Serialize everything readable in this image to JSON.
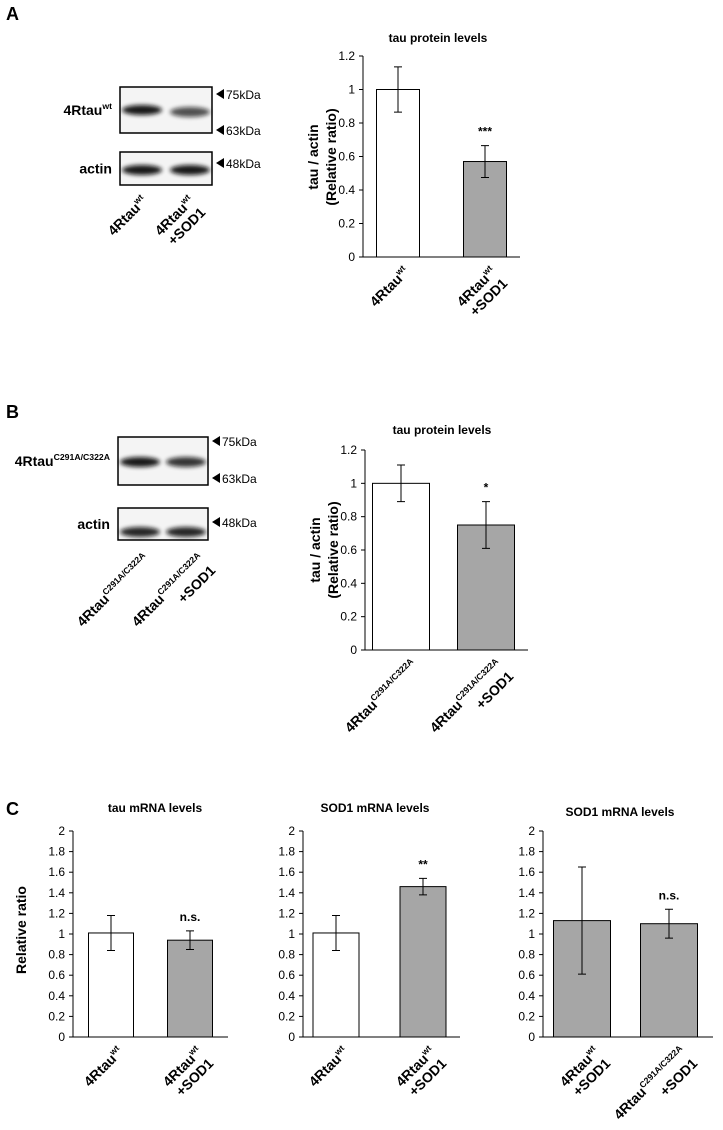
{
  "panels": [
    "A",
    "B",
    "C"
  ],
  "blots": [
    {
      "rows": [
        {
          "label": {
            "text": "4Rtau",
            "sup": "wt"
          },
          "markers": [
            "75kDa",
            "63kDa"
          ]
        },
        {
          "label": {
            "text": "actin"
          },
          "markers": [
            "48kDa"
          ]
        }
      ],
      "lanes": [
        {
          "text": "4Rtau",
          "sup": "wt"
        },
        {
          "text": "4Rtau",
          "sup": "wt",
          "line2": "+SOD1"
        }
      ]
    },
    {
      "rows": [
        {
          "label": {
            "text": "4Rtau",
            "sup": "C291A/C322A"
          },
          "markers": [
            "75kDa",
            "63kDa"
          ]
        },
        {
          "label": {
            "text": "actin"
          },
          "markers": [
            "48kDa"
          ]
        }
      ],
      "lanes": [
        {
          "text": "4Rtau",
          "sup": "C291A/C322A"
        },
        {
          "text": "4Rtau",
          "sup": "C291A/C322A",
          "line2": "+SOD1"
        }
      ]
    }
  ],
  "chart_data": [
    {
      "type": "bar",
      "title": "tau protein levels",
      "ylabel": [
        "tau / actin",
        "(Relative ratio)"
      ],
      "categories": [
        {
          "text": "4Rtau",
          "sup": "wt"
        },
        {
          "text": "4Rtau",
          "sup": "wt",
          "line2": "+SOD1"
        }
      ],
      "values": [
        1.0,
        0.57
      ],
      "errors": [
        0.135,
        0.095
      ],
      "annotations": [
        null,
        "***"
      ],
      "colors": [
        "#ffffff",
        "#a6a6a6"
      ],
      "ylim": [
        0,
        1.2
      ],
      "yticks": [
        0,
        0.2,
        0.4,
        0.6,
        0.8,
        1,
        1.2
      ]
    },
    {
      "type": "bar",
      "title": "tau protein levels",
      "ylabel": [
        "tau / actin",
        "(Relative ratio)"
      ],
      "categories": [
        {
          "text": "4Rtau",
          "sup": "C291A/C322A"
        },
        {
          "text": "4Rtau",
          "sup": "C291A/C322A",
          "line2": "+SOD1"
        }
      ],
      "values": [
        1.0,
        0.75
      ],
      "errors": [
        0.11,
        0.14
      ],
      "annotations": [
        null,
        "*"
      ],
      "colors": [
        "#ffffff",
        "#a6a6a6"
      ],
      "ylim": [
        0,
        1.2
      ],
      "yticks": [
        0,
        0.2,
        0.4,
        0.6,
        0.8,
        1,
        1.2
      ]
    },
    {
      "type": "bar",
      "title": "tau mRNA levels",
      "ylabel": "Relative ratio",
      "categories": [
        {
          "text": "4Rtau",
          "sup": "wt"
        },
        {
          "text": "4Rtau",
          "sup": "wt",
          "line2": "+SOD1"
        }
      ],
      "values": [
        1.01,
        0.94
      ],
      "errors": [
        0.17,
        0.09
      ],
      "annotations": [
        null,
        "n.s."
      ],
      "colors": [
        "#ffffff",
        "#a6a6a6"
      ],
      "ylim": [
        0,
        2
      ],
      "yticks": [
        0,
        0.2,
        0.4,
        0.6,
        0.8,
        1,
        1.2,
        1.4,
        1.6,
        1.8,
        2
      ]
    },
    {
      "type": "bar",
      "title": "SOD1 mRNA levels",
      "categories": [
        {
          "text": "4Rtau",
          "sup": "wt"
        },
        {
          "text": "4Rtau",
          "sup": "wt",
          "line2": "+SOD1"
        }
      ],
      "values": [
        1.01,
        1.46
      ],
      "errors": [
        0.17,
        0.08
      ],
      "annotations": [
        null,
        "**"
      ],
      "colors": [
        "#ffffff",
        "#a6a6a6"
      ],
      "ylim": [
        0,
        2
      ],
      "yticks": [
        0,
        0.2,
        0.4,
        0.6,
        0.8,
        1,
        1.2,
        1.4,
        1.6,
        1.8,
        2
      ]
    },
    {
      "type": "bar",
      "title": "SOD1 mRNA levels",
      "categories": [
        {
          "text": "4Rtau",
          "sup": "wt",
          "line2": "+SOD1"
        },
        {
          "text": "4Rtau",
          "sup": "C291A/C322A",
          "line2": "+SOD1"
        }
      ],
      "values": [
        1.13,
        1.1
      ],
      "errors": [
        0.52,
        0.14
      ],
      "annotations": [
        null,
        "n.s."
      ],
      "colors": [
        "#a6a6a6",
        "#a6a6a6"
      ],
      "ylim": [
        0,
        2
      ],
      "yticks": [
        0,
        0.2,
        0.4,
        0.6,
        0.8,
        1,
        1.2,
        1.4,
        1.6,
        1.8,
        2
      ]
    }
  ]
}
